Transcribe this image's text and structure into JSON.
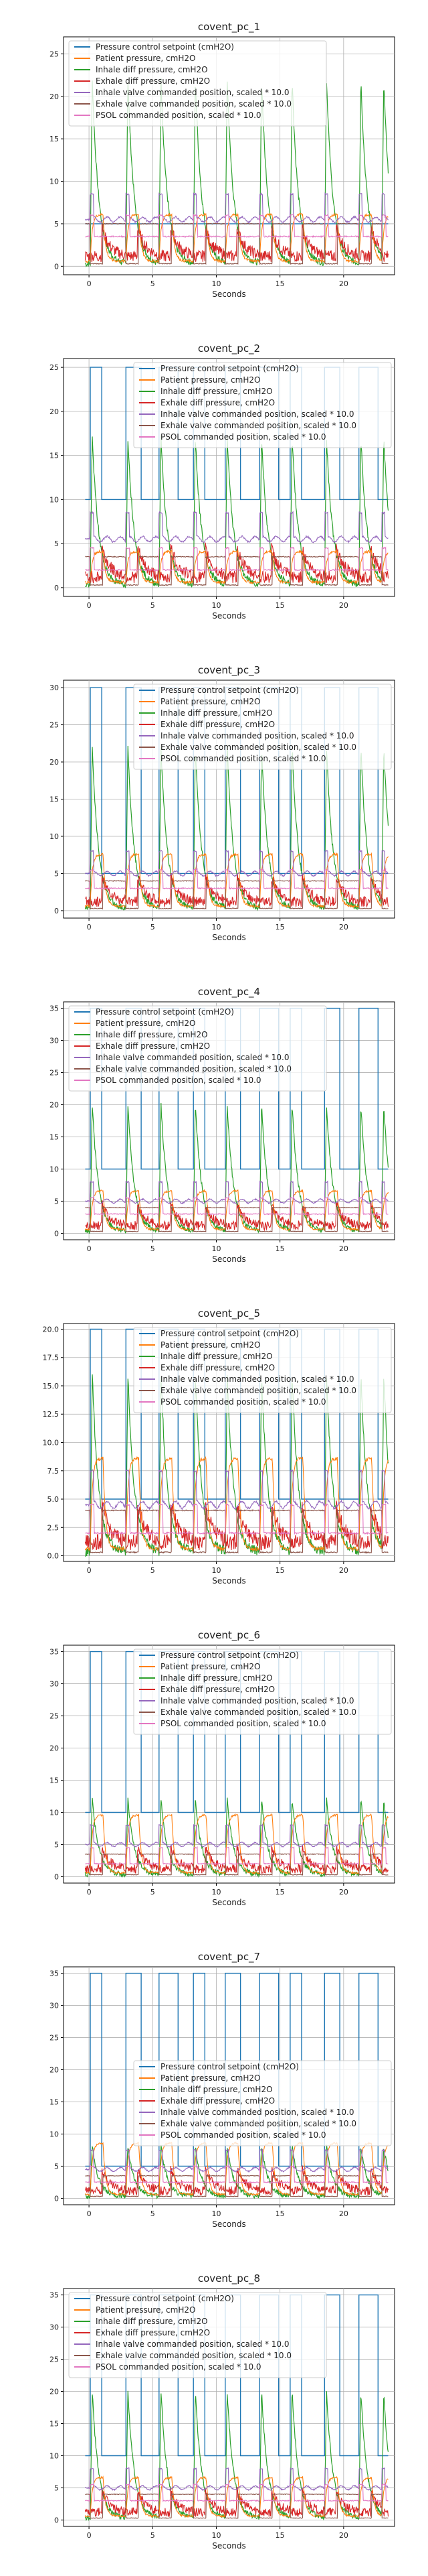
{
  "chart_data": [
    {
      "title": "covent_pc_1",
      "type": "line",
      "xlabel": "Seconds",
      "xlim": [
        -2,
        24
      ],
      "xticks": [
        0,
        5,
        10,
        15,
        20
      ],
      "ylim": [
        -1,
        27
      ],
      "yticks": [
        0,
        5,
        10,
        15,
        20,
        25
      ],
      "setpoint_high": 5,
      "setpoint_low": 5,
      "peak_inhale": 22,
      "peak_patient": 5.5,
      "inhale_valve": 5.5,
      "exhale_valve": 5.0,
      "psol_level": 3.5,
      "legend_pos": "top"
    },
    {
      "title": "covent_pc_2",
      "type": "line",
      "xlabel": "Seconds",
      "xlim": [
        -2,
        24
      ],
      "xticks": [
        0,
        5,
        10,
        15,
        20
      ],
      "ylim": [
        -1,
        26
      ],
      "yticks": [
        0,
        5,
        10,
        15,
        20,
        25
      ],
      "setpoint_high": 25,
      "setpoint_low": 10,
      "peak_inhale": 17,
      "peak_patient": 3.5,
      "inhale_valve": 5.5,
      "exhale_valve": 3.5,
      "psol_level": 2.0,
      "legend_pos": "top-right"
    },
    {
      "title": "covent_pc_3",
      "type": "line",
      "xlabel": "Seconds",
      "xlim": [
        -2,
        24
      ],
      "xticks": [
        0,
        5,
        10,
        15,
        20
      ],
      "ylim": [
        -1,
        31
      ],
      "yticks": [
        0,
        5,
        10,
        15,
        20,
        25,
        30
      ],
      "setpoint_high": 30,
      "setpoint_low": 5,
      "peak_inhale": 22,
      "peak_patient": 7,
      "inhale_valve": 5.0,
      "exhale_valve": 4.0,
      "psol_level": 3.0,
      "legend_pos": "top-right"
    },
    {
      "title": "covent_pc_4",
      "type": "line",
      "xlabel": "Seconds",
      "xlim": [
        -2,
        24
      ],
      "xticks": [
        0,
        5,
        10,
        15,
        20
      ],
      "ylim": [
        -1,
        36
      ],
      "yticks": [
        0,
        5,
        10,
        15,
        20,
        25,
        30,
        35
      ],
      "setpoint_high": 35,
      "setpoint_low": 10,
      "peak_inhale": 20,
      "peak_patient": 6,
      "inhale_valve": 5.0,
      "exhale_valve": 4.0,
      "psol_level": 3.0,
      "legend_pos": "top"
    },
    {
      "title": "covent_pc_5",
      "type": "line",
      "xlabel": "Seconds",
      "xlim": [
        -2,
        24
      ],
      "xticks": [
        0,
        5,
        10,
        15,
        20
      ],
      "ylim": [
        -0.5,
        20.5
      ],
      "yticks": [
        0.0,
        2.5,
        5.0,
        7.5,
        10.0,
        12.5,
        15.0,
        17.5,
        20.0
      ],
      "setpoint_high": 20,
      "setpoint_low": 5,
      "peak_inhale": 16,
      "peak_patient": 8,
      "inhale_valve": 4.5,
      "exhale_valve": 4.0,
      "psol_level": 2.0,
      "legend_pos": "top-right"
    },
    {
      "title": "covent_pc_6",
      "type": "line",
      "xlabel": "Seconds",
      "xlim": [
        -2,
        24
      ],
      "xticks": [
        0,
        5,
        10,
        15,
        20
      ],
      "ylim": [
        -1,
        36
      ],
      "yticks": [
        0,
        5,
        10,
        15,
        20,
        25,
        30,
        35
      ],
      "setpoint_high": 35,
      "setpoint_low": 10,
      "peak_inhale": 12,
      "peak_patient": 9,
      "inhale_valve": 5.0,
      "exhale_valve": 3.5,
      "psol_level": 2.0,
      "legend_pos": "top-right"
    },
    {
      "title": "covent_pc_7",
      "type": "line",
      "xlabel": "Seconds",
      "xlim": [
        -2,
        24
      ],
      "xticks": [
        0,
        5,
        10,
        15,
        20
      ],
      "ylim": [
        -1,
        36
      ],
      "yticks": [
        0,
        5,
        10,
        15,
        20,
        25,
        30,
        35
      ],
      "setpoint_high": 35,
      "setpoint_low": 5,
      "peak_inhale": 8,
      "peak_patient": 8,
      "inhale_valve": 4.5,
      "exhale_valve": 3.5,
      "psol_level": 2.5,
      "legend_pos": "center-right"
    },
    {
      "title": "covent_pc_8",
      "type": "line",
      "xlabel": "Seconds",
      "xlim": [
        -2,
        24
      ],
      "xticks": [
        0,
        5,
        10,
        15,
        20
      ],
      "ylim": [
        -1,
        36
      ],
      "yticks": [
        0,
        5,
        10,
        15,
        20,
        25,
        30,
        35
      ],
      "setpoint_high": 35,
      "setpoint_low": 10,
      "peak_inhale": 20,
      "peak_patient": 6,
      "inhale_valve": 5.0,
      "exhale_valve": 4.0,
      "psol_level": 3.0,
      "legend_pos": "top"
    }
  ],
  "legend": [
    {
      "name": "Pressure control setpoint (cmH2O)",
      "color": "#1f77b4"
    },
    {
      "name": "Patient pressure, cmH2O",
      "color": "#ff7f0e"
    },
    {
      "name": "Inhale diff pressure, cmH2O",
      "color": "#2ca02c"
    },
    {
      "name": "Exhale diff pressure, cmH2O",
      "color": "#d62728"
    },
    {
      "name": "Inhale valve commanded position, scaled * 10.0",
      "color": "#9467bd"
    },
    {
      "name": "Exhale valve commanded position, scaled * 10.0",
      "color": "#8c564b"
    },
    {
      "name": "PSOL commanded position, scaled * 10.0",
      "color": "#e377c2"
    }
  ]
}
